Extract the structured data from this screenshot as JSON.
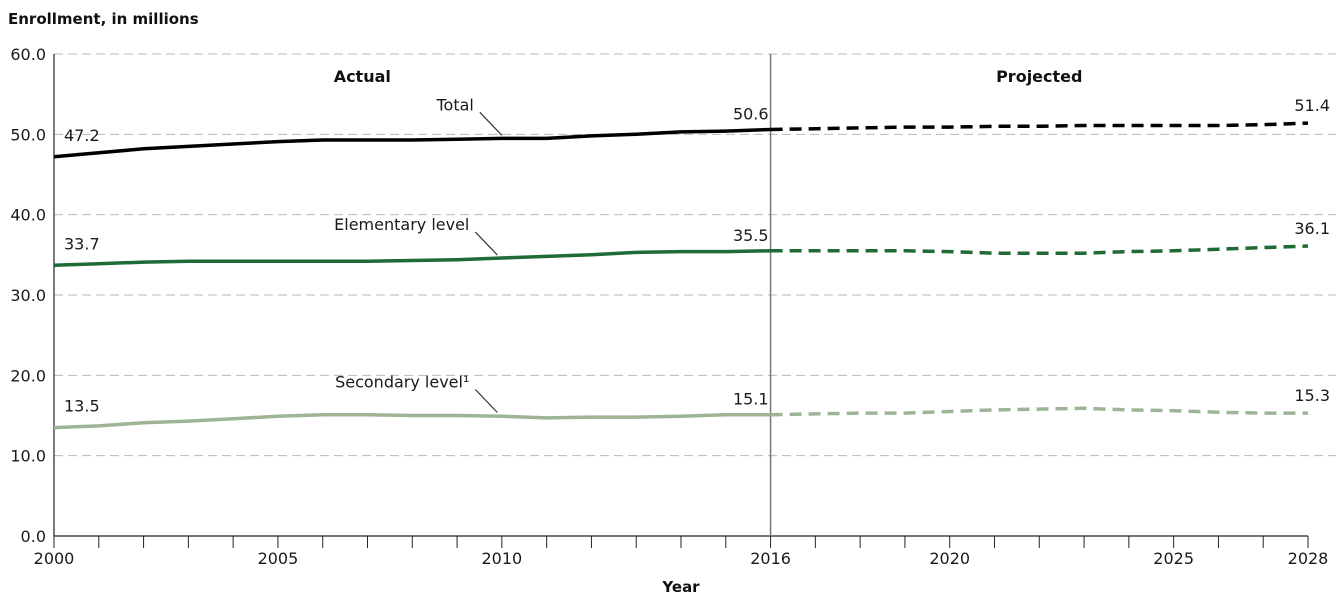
{
  "chart_data": {
    "type": "line",
    "ylabel": "Enrollment, in millions",
    "xlabel": "Year",
    "ylim": [
      0,
      60
    ],
    "xlim": [
      2000,
      2028
    ],
    "y_ticks": [
      "0.0",
      "10.0",
      "20.0",
      "30.0",
      "40.0",
      "50.0",
      "60.0"
    ],
    "x_tick_labels": [
      "2000",
      "2005",
      "2010",
      "2016",
      "2020",
      "2025",
      "2028"
    ],
    "grid": "horizontal dashed",
    "divider_year": 2016,
    "regions": {
      "actual": "Actual",
      "projected": "Projected"
    },
    "series": [
      {
        "name": "Total",
        "color": "#000000",
        "x": [
          2000,
          2001,
          2002,
          2003,
          2004,
          2005,
          2006,
          2007,
          2008,
          2009,
          2010,
          2011,
          2012,
          2013,
          2014,
          2015,
          2016,
          2017,
          2018,
          2019,
          2020,
          2021,
          2022,
          2023,
          2024,
          2025,
          2026,
          2027,
          2028
        ],
        "values": [
          47.2,
          47.7,
          48.2,
          48.5,
          48.8,
          49.1,
          49.3,
          49.3,
          49.3,
          49.4,
          49.5,
          49.5,
          49.8,
          50.0,
          50.3,
          50.4,
          50.6,
          50.7,
          50.8,
          50.9,
          50.9,
          51.0,
          51.0,
          51.1,
          51.1,
          51.1,
          51.1,
          51.2,
          51.4
        ],
        "start_label": "47.2",
        "mid_label": "50.6",
        "end_label": "51.4"
      },
      {
        "name": "Elementary level",
        "color": "#1e6b35",
        "x": [
          2000,
          2001,
          2002,
          2003,
          2004,
          2005,
          2006,
          2007,
          2008,
          2009,
          2010,
          2011,
          2012,
          2013,
          2014,
          2015,
          2016,
          2017,
          2018,
          2019,
          2020,
          2021,
          2022,
          2023,
          2024,
          2025,
          2026,
          2027,
          2028
        ],
        "values": [
          33.7,
          33.9,
          34.1,
          34.2,
          34.2,
          34.2,
          34.2,
          34.2,
          34.3,
          34.4,
          34.6,
          34.8,
          35.0,
          35.3,
          35.4,
          35.4,
          35.5,
          35.5,
          35.5,
          35.5,
          35.4,
          35.2,
          35.2,
          35.2,
          35.4,
          35.5,
          35.7,
          35.9,
          36.1
        ],
        "start_label": "33.7",
        "mid_label": "35.5",
        "end_label": "36.1"
      },
      {
        "name": "Secondary level¹",
        "color": "#9db596",
        "x": [
          2000,
          2001,
          2002,
          2003,
          2004,
          2005,
          2006,
          2007,
          2008,
          2009,
          2010,
          2011,
          2012,
          2013,
          2014,
          2015,
          2016,
          2017,
          2018,
          2019,
          2020,
          2021,
          2022,
          2023,
          2024,
          2025,
          2026,
          2027,
          2028
        ],
        "values": [
          13.5,
          13.7,
          14.1,
          14.3,
          14.6,
          14.9,
          15.1,
          15.1,
          15.0,
          15.0,
          14.9,
          14.7,
          14.8,
          14.8,
          14.9,
          15.1,
          15.1,
          15.2,
          15.3,
          15.3,
          15.5,
          15.7,
          15.8,
          15.9,
          15.7,
          15.6,
          15.4,
          15.3,
          15.3
        ],
        "start_label": "13.5",
        "mid_label": "15.1",
        "end_label": "15.3"
      }
    ]
  }
}
